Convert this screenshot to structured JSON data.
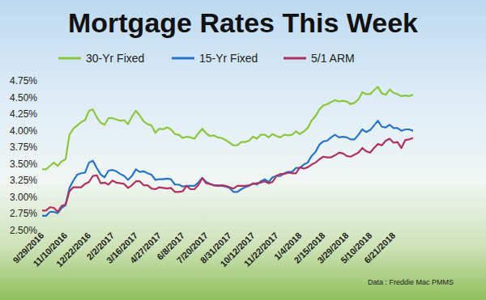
{
  "chart_data": {
    "type": "line",
    "title": "Mortgage Rates This Week",
    "annotations": [
      "Data : Freddie Mac PMMS"
    ],
    "categories": [
      "9/29/2016",
      null,
      null,
      null,
      null,
      null,
      "11/10/2016",
      null,
      null,
      null,
      null,
      null,
      "12/22/2016",
      null,
      null,
      null,
      null,
      null,
      "2/2/2017",
      null,
      null,
      null,
      null,
      null,
      "3/16/2017",
      null,
      null,
      null,
      null,
      null,
      "4/27/2017",
      null,
      null,
      null,
      null,
      null,
      "6/8/2017",
      null,
      null,
      null,
      null,
      null,
      "7/20/2017",
      null,
      null,
      null,
      null,
      null,
      "8/31/2017",
      null,
      null,
      null,
      null,
      null,
      "10/12/2017",
      null,
      null,
      null,
      null,
      null,
      "11/22/2017",
      null,
      null,
      null,
      null,
      null,
      "1/4/2018",
      null,
      null,
      null,
      null,
      null,
      "2/15/2018",
      null,
      null,
      null,
      null,
      null,
      "3/29/2018",
      null,
      null,
      null,
      null,
      null,
      "5/10/2018",
      null,
      null,
      null,
      null,
      null,
      "6/21/2018",
      null,
      null,
      null,
      null,
      null
    ],
    "series": [
      {
        "name": "30-Yr Fixed",
        "color": "#8cc63f",
        "values": [
          3.42,
          3.42,
          3.47,
          3.52,
          3.47,
          3.54,
          3.57,
          3.94,
          4.03,
          4.08,
          4.13,
          4.16,
          4.3,
          4.32,
          4.2,
          4.12,
          4.09,
          4.19,
          4.19,
          4.17,
          4.15,
          4.16,
          4.1,
          4.21,
          4.3,
          4.23,
          4.14,
          4.1,
          4.08,
          3.97,
          4.03,
          4.02,
          4.05,
          4.02,
          3.95,
          3.94,
          3.89,
          3.91,
          3.9,
          3.88,
          3.96,
          4.03,
          3.96,
          3.92,
          3.93,
          3.9,
          3.89,
          3.86,
          3.82,
          3.78,
          3.78,
          3.83,
          3.83,
          3.85,
          3.91,
          3.88,
          3.94,
          3.94,
          3.9,
          3.95,
          3.92,
          3.9,
          3.94,
          3.93,
          3.94,
          3.99,
          3.95,
          3.99,
          4.04,
          4.15,
          4.22,
          4.32,
          4.38,
          4.4,
          4.43,
          4.46,
          4.44,
          4.45,
          4.44,
          4.4,
          4.42,
          4.47,
          4.58,
          4.55,
          4.55,
          4.61,
          4.66,
          4.56,
          4.54,
          4.62,
          4.57,
          4.55,
          4.52,
          4.53,
          4.52,
          4.54
        ]
      },
      {
        "name": "15-Yr Fixed",
        "color": "#2574c9",
        "values": [
          2.72,
          2.72,
          2.78,
          2.78,
          2.76,
          2.84,
          2.88,
          3.14,
          3.25,
          3.34,
          3.36,
          3.37,
          3.52,
          3.55,
          3.44,
          3.34,
          3.3,
          3.4,
          3.41,
          3.39,
          3.35,
          3.32,
          3.26,
          3.32,
          3.42,
          3.38,
          3.39,
          3.36,
          3.34,
          3.26,
          3.27,
          3.27,
          3.28,
          3.27,
          3.19,
          3.19,
          3.16,
          3.17,
          3.17,
          3.17,
          3.22,
          3.29,
          3.23,
          3.2,
          3.18,
          3.18,
          3.17,
          3.16,
          3.14,
          3.08,
          3.08,
          3.12,
          3.15,
          3.17,
          3.21,
          3.19,
          3.24,
          3.27,
          3.23,
          3.3,
          3.32,
          3.32,
          3.36,
          3.38,
          3.38,
          3.44,
          3.44,
          3.49,
          3.52,
          3.62,
          3.68,
          3.79,
          3.84,
          3.85,
          3.9,
          3.94,
          3.9,
          3.91,
          3.9,
          3.87,
          3.87,
          3.94,
          4.02,
          3.98,
          4.01,
          4.08,
          4.15,
          4.06,
          4.05,
          4.09,
          4.04,
          4.04,
          4.0,
          4.02,
          4.02,
          4.0
        ]
      },
      {
        "name": "5/1 ARM",
        "color": "#b3305e",
        "values": [
          2.8,
          2.8,
          2.85,
          2.84,
          2.78,
          2.87,
          2.89,
          3.09,
          3.15,
          3.15,
          3.15,
          3.2,
          3.23,
          3.32,
          3.33,
          3.21,
          3.22,
          3.19,
          3.25,
          3.22,
          3.21,
          3.2,
          3.14,
          3.18,
          3.24,
          3.24,
          3.18,
          3.18,
          3.13,
          3.12,
          3.15,
          3.14,
          3.13,
          3.14,
          3.08,
          3.08,
          3.09,
          3.17,
          3.12,
          3.12,
          3.18,
          3.29,
          3.21,
          3.2,
          3.18,
          3.17,
          3.18,
          3.17,
          3.15,
          3.13,
          3.17,
          3.17,
          3.17,
          3.18,
          3.2,
          3.21,
          3.22,
          3.24,
          3.21,
          3.23,
          3.32,
          3.35,
          3.35,
          3.37,
          3.36,
          3.36,
          3.45,
          3.43,
          3.45,
          3.49,
          3.52,
          3.57,
          3.61,
          3.6,
          3.6,
          3.63,
          3.67,
          3.66,
          3.62,
          3.61,
          3.64,
          3.67,
          3.74,
          3.69,
          3.67,
          3.74,
          3.8,
          3.78,
          3.85,
          3.88,
          3.82,
          3.83,
          3.74,
          3.86,
          3.87,
          3.89
        ]
      }
    ],
    "ylim": [
      2.5,
      4.75
    ],
    "yticks": [
      {
        "value": 2.5,
        "label": "2.50%"
      },
      {
        "value": 2.75,
        "label": "2.75%"
      },
      {
        "value": 3,
        "label": "3.00%"
      },
      {
        "value": 3.25,
        "label": "3.25%"
      },
      {
        "value": 3.5,
        "label": "3.50%"
      },
      {
        "value": 3.75,
        "label": "3.75%"
      },
      {
        "value": 4,
        "label": "4.00%"
      },
      {
        "value": 4.25,
        "label": "4.25%"
      },
      {
        "value": 4.5,
        "label": "4.50%"
      },
      {
        "value": 4.75,
        "label": "4.75%"
      }
    ],
    "grid": false,
    "legend": "top"
  }
}
